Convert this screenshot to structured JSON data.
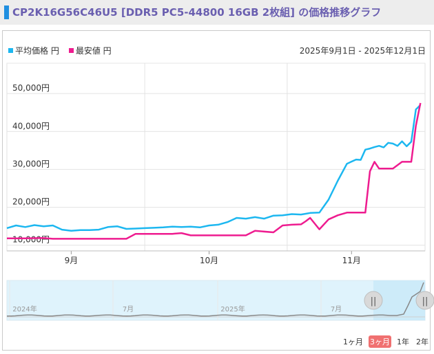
{
  "title": "CP2K16G56C46U5 [DDR5 PC5-44800 16GB 2枚組] の価格推移グラフ",
  "legend": {
    "avg_label": "平均価格 円",
    "min_label": "最安値 円"
  },
  "date_range": "2025年9月1日 - 2025年12月1日",
  "range_buttons": [
    "1ヶ月",
    "3ヶ月",
    "1年",
    "2年"
  ],
  "active_range": "3ヶ月",
  "navigator": {
    "labels": [
      "2024年",
      "7月",
      "2025年",
      "7月"
    ],
    "left_handle": "||",
    "right_handle": "||"
  },
  "colors": {
    "avg": "#1cb7f0",
    "min": "#ee1b8f",
    "navigator_fill": "#dff3fc"
  },
  "chart_data": {
    "type": "line",
    "title": "CP2K16G56C46U5 [DDR5 PC5-44800 16GB 2枚組] の価格推移グラフ",
    "xlabel": "",
    "ylabel": "",
    "x_tick_labels": [
      "9月",
      "10月",
      "11月"
    ],
    "y_tick_labels": [
      "10,000円",
      "20,000円",
      "30,000円",
      "40,000円",
      "50,000円"
    ],
    "x_range": [
      "2025-09-01",
      "2025-12-01"
    ],
    "ylim": [
      8500,
      58000
    ],
    "grid": true,
    "legend_position": "top-left",
    "series": [
      {
        "name": "平均価格 円",
        "points": [
          [
            "2025-09-01",
            14500
          ],
          [
            "2025-09-03",
            15200
          ],
          [
            "2025-09-05",
            14800
          ],
          [
            "2025-09-07",
            15300
          ],
          [
            "2025-09-09",
            15000
          ],
          [
            "2025-09-11",
            15200
          ],
          [
            "2025-09-13",
            14100
          ],
          [
            "2025-09-15",
            13800
          ],
          [
            "2025-09-17",
            14000
          ],
          [
            "2025-09-19",
            14000
          ],
          [
            "2025-09-21",
            14100
          ],
          [
            "2025-09-23",
            14800
          ],
          [
            "2025-09-25",
            15000
          ],
          [
            "2025-09-27",
            14300
          ],
          [
            "2025-09-29",
            14400
          ],
          [
            "2025-10-01",
            14500
          ],
          [
            "2025-10-03",
            14600
          ],
          [
            "2025-10-05",
            14700
          ],
          [
            "2025-10-07",
            14900
          ],
          [
            "2025-10-09",
            14800
          ],
          [
            "2025-10-11",
            14900
          ],
          [
            "2025-10-13",
            14700
          ],
          [
            "2025-10-15",
            15200
          ],
          [
            "2025-10-17",
            15400
          ],
          [
            "2025-10-19",
            16100
          ],
          [
            "2025-10-21",
            17200
          ],
          [
            "2025-10-23",
            17000
          ],
          [
            "2025-10-25",
            17400
          ],
          [
            "2025-10-27",
            17000
          ],
          [
            "2025-10-29",
            17800
          ],
          [
            "2025-10-31",
            17900
          ],
          [
            "2025-11-02",
            18200
          ],
          [
            "2025-11-04",
            18100
          ],
          [
            "2025-11-05",
            18300
          ],
          [
            "2025-11-06",
            18500
          ],
          [
            "2025-11-08",
            18600
          ],
          [
            "2025-11-10",
            22000
          ],
          [
            "2025-11-12",
            27000
          ],
          [
            "2025-11-14",
            31500
          ],
          [
            "2025-11-16",
            32600
          ],
          [
            "2025-11-17",
            32500
          ],
          [
            "2025-11-18",
            35200
          ],
          [
            "2025-11-19",
            35500
          ],
          [
            "2025-11-20",
            35900
          ],
          [
            "2025-11-21",
            36200
          ],
          [
            "2025-11-22",
            35800
          ],
          [
            "2025-11-23",
            37000
          ],
          [
            "2025-11-24",
            36800
          ],
          [
            "2025-11-25",
            36200
          ],
          [
            "2025-11-26",
            37400
          ],
          [
            "2025-11-27",
            36100
          ],
          [
            "2025-11-28",
            37300
          ],
          [
            "2025-11-29",
            45800
          ],
          [
            "2025-11-30",
            47000
          ]
        ]
      },
      {
        "name": "最安値 円",
        "points": [
          [
            "2025-09-01",
            11800
          ],
          [
            "2025-09-05",
            11800
          ],
          [
            "2025-09-09",
            11900
          ],
          [
            "2025-09-11",
            11700
          ],
          [
            "2025-09-15",
            11700
          ],
          [
            "2025-09-19",
            11700
          ],
          [
            "2025-09-23",
            11700
          ],
          [
            "2025-09-27",
            11700
          ],
          [
            "2025-09-29",
            13000
          ],
          [
            "2025-10-03",
            13000
          ],
          [
            "2025-10-07",
            13000
          ],
          [
            "2025-10-09",
            13200
          ],
          [
            "2025-10-11",
            12600
          ],
          [
            "2025-10-15",
            12600
          ],
          [
            "2025-10-19",
            12600
          ],
          [
            "2025-10-23",
            12600
          ],
          [
            "2025-10-25",
            13800
          ],
          [
            "2025-10-29",
            13400
          ],
          [
            "2025-10-31",
            15200
          ],
          [
            "2025-11-02",
            15400
          ],
          [
            "2025-11-04",
            15500
          ],
          [
            "2025-11-05",
            16300
          ],
          [
            "2025-11-06",
            17200
          ],
          [
            "2025-11-08",
            14200
          ],
          [
            "2025-11-10",
            16800
          ],
          [
            "2025-11-12",
            17900
          ],
          [
            "2025-11-14",
            18600
          ],
          [
            "2025-11-16",
            18600
          ],
          [
            "2025-11-18",
            18600
          ],
          [
            "2025-11-19",
            29500
          ],
          [
            "2025-11-20",
            32000
          ],
          [
            "2025-11-21",
            30200
          ],
          [
            "2025-11-24",
            30200
          ],
          [
            "2025-11-26",
            32000
          ],
          [
            "2025-11-28",
            32000
          ],
          [
            "2025-11-29",
            41500
          ],
          [
            "2025-11-30",
            47500
          ]
        ]
      }
    ]
  }
}
